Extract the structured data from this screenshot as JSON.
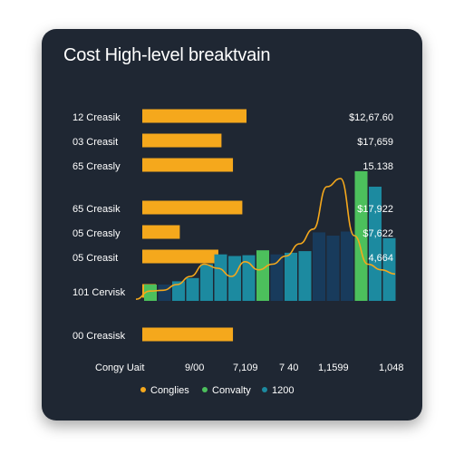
{
  "title": "Cost High-level breaktvain",
  "colors": {
    "background": "#1f2733",
    "orange": "#f5a81c",
    "green": "#4cc05c",
    "teal": "#1c8aa0",
    "navy": "#183b5c",
    "text": "#ffffff"
  },
  "chart_data": {
    "type": "bar",
    "title": "Cost High-level breaktvain",
    "horizontal_bars": {
      "categories": [
        "12 Creasik",
        "03 Creasit",
        "65 Creasly",
        "65 Creasik",
        "05 Creasly",
        "05 Creasit",
        "101 Cervisk",
        "00 Creasisk"
      ],
      "values": [
        100,
        76,
        87,
        96,
        36,
        73,
        13,
        87
      ],
      "value_labels": [
        "$12,67.60",
        "$17,659",
        "15.138",
        "$17,922",
        "$7,622",
        "4,664",
        "",
        ""
      ],
      "xlim": [
        0,
        100
      ]
    },
    "column_series": {
      "values": [
        20,
        20,
        24,
        28,
        45,
        57,
        55,
        56,
        62,
        57,
        59,
        61,
        84,
        80,
        85,
        159,
        140,
        77
      ],
      "colors": [
        "green",
        "navy",
        "teal",
        "teal",
        "teal",
        "teal",
        "teal",
        "teal",
        "green",
        "navy",
        "teal",
        "teal",
        "navy",
        "navy",
        "navy",
        "green",
        "teal",
        "teal"
      ],
      "ylim": [
        0,
        170
      ]
    },
    "trend_line": {
      "values": [
        2,
        12,
        13,
        20,
        30,
        45,
        40,
        30,
        48,
        38,
        45,
        55,
        70,
        88,
        140,
        150,
        80,
        45,
        38,
        33
      ],
      "ylim": [
        0,
        170
      ]
    },
    "x_tick_labels": [
      "Congy Uait",
      "9/00",
      "7,109",
      "7 40",
      "1,1599",
      "1,048"
    ],
    "legend": [
      {
        "label": "Conglies",
        "color": "orange"
      },
      {
        "label": "Convalty",
        "color": "green"
      },
      {
        "label": "1200",
        "color": "teal"
      }
    ]
  }
}
